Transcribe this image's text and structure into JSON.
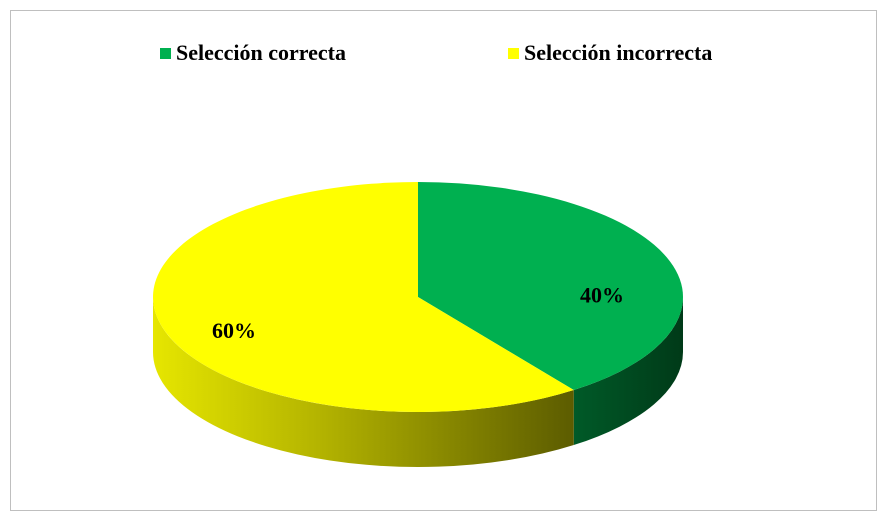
{
  "chart_data": {
    "type": "pie3d",
    "categories": [
      "Selección correcta",
      "Selección incorrecta"
    ],
    "values": [
      40,
      60
    ],
    "value_labels": [
      "40%",
      "60%"
    ],
    "colors": [
      "#00b050",
      "#ffff00"
    ],
    "legend": "top"
  }
}
